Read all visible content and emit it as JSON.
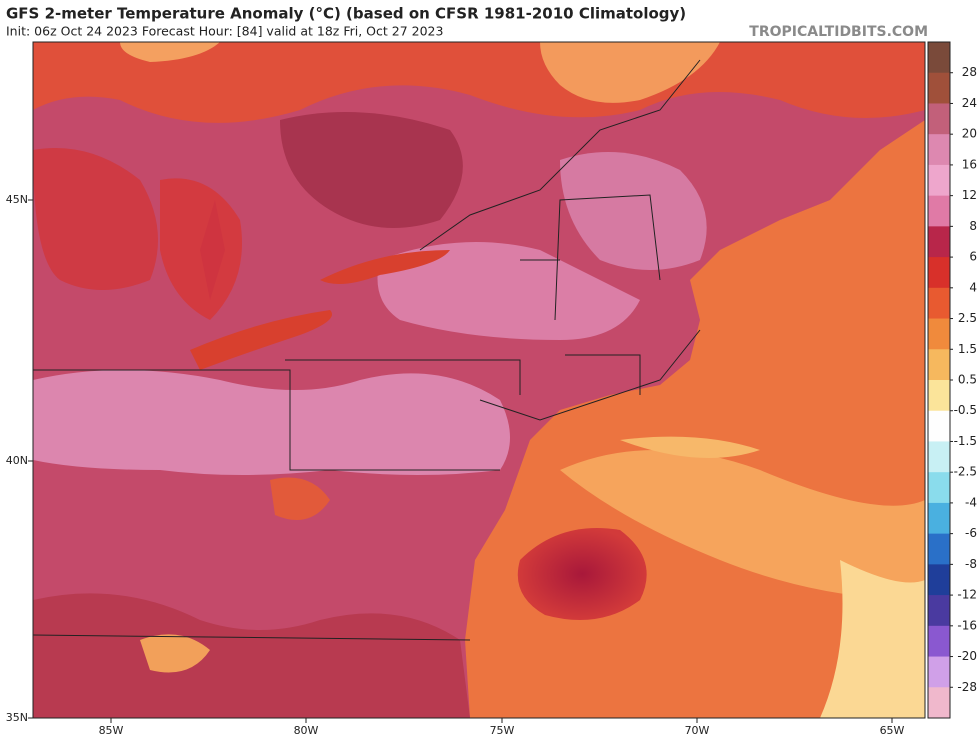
{
  "header": {
    "title": "GFS 2-meter Temperature Anomaly (°C) (based on CFSR 1981-2010 Climatology)",
    "subtitle": "Init: 06z Oct 24 2023   Forecast Hour: [84]   valid at 18z Fri, Oct 27 2023",
    "watermark": "TROPICALTIDBITS.COM"
  },
  "map": {
    "lat_labels": [
      "45N",
      "40N",
      "35N"
    ],
    "lon_labels": [
      "85W",
      "80W",
      "75W",
      "70W",
      "65W"
    ]
  },
  "colorbar": {
    "ticks": [
      28,
      24,
      20,
      16,
      12,
      8,
      6,
      4,
      2.5,
      1.5,
      0.5,
      -0.5,
      -1.5,
      -2.5,
      -4,
      -6,
      -8,
      -12,
      -16,
      -20,
      -28
    ],
    "colors": [
      "#7a4a3a",
      "#a0503a",
      "#c2607a",
      "#dd88b0",
      "#eea6cc",
      "#e07aa6",
      "#b8264a",
      "#d8302a",
      "#e85a30",
      "#f08a3c",
      "#f6b85e",
      "#fbe49a",
      "#fefefe",
      "#c8f0f4",
      "#8adcec",
      "#4ab0e0",
      "#2a70c8",
      "#1f3e9a",
      "#4a3aa0",
      "#8a58d0",
      "#d0a0e8",
      "#f0b8cc"
    ]
  }
}
